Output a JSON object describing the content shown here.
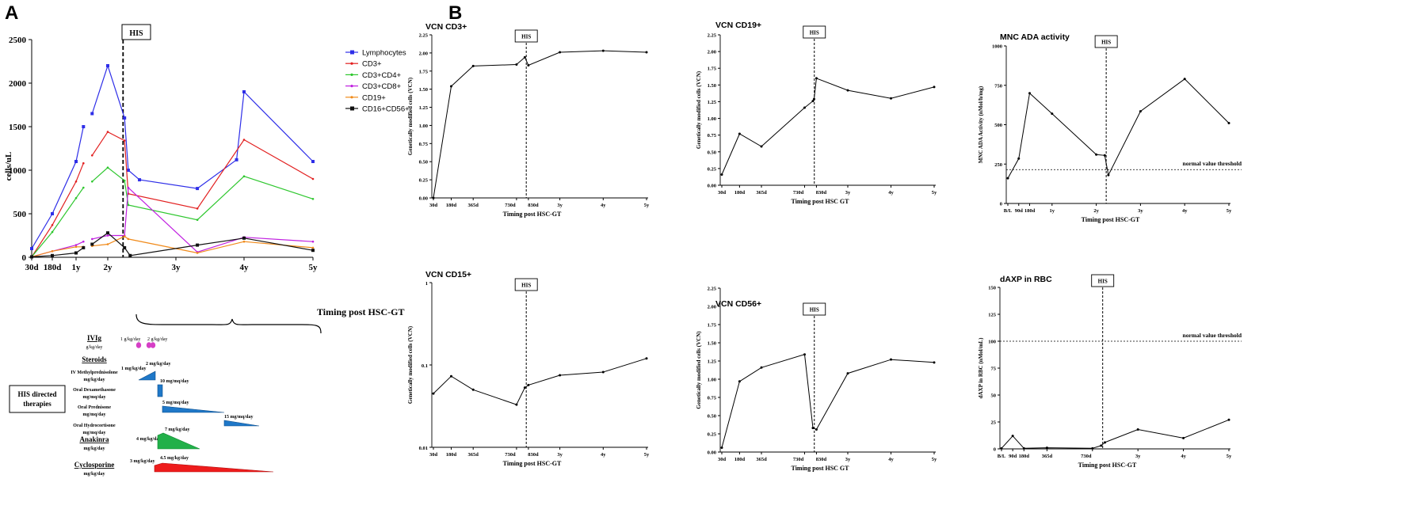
{
  "panel_labels": {
    "a": "A",
    "b": "B"
  },
  "his_label": "HIS",
  "chart_data": [
    {
      "id": "lymph",
      "type": "line",
      "title": "",
      "ylabel": "cells/uL",
      "xlabel": "Timing post HSC-GT",
      "ylim": [
        0,
        2500
      ],
      "yticks": [
        0,
        500,
        1000,
        1500,
        2000,
        2500
      ],
      "xticks": [
        {
          "x": 30,
          "label": "30d"
        },
        {
          "x": 180,
          "label": "180d"
        },
        {
          "x": 365,
          "label": "1y"
        },
        {
          "x": 730,
          "label": "2y"
        },
        {
          "x": 1095,
          "label": "3y"
        },
        {
          "x": 1460,
          "label": "4y"
        },
        {
          "x": 1825,
          "label": "5y"
        }
      ],
      "his_x": 812,
      "legend": [
        "Lymphocytes",
        "CD3+",
        "CD3+CD4+",
        "CD3+CD8+",
        "CD19+",
        "CD16+CD56+"
      ],
      "series": [
        {
          "name": "Lymphocytes",
          "color": "#2e2ee8",
          "marker": "square",
          "segments": [
            [
              [
                30,
                100
              ],
              [
                180,
                500
              ],
              [
                365,
                1100
              ],
              [
                450,
                1500
              ]
            ],
            [
              [
                550,
                1650
              ],
              [
                730,
                2200
              ],
              [
                820,
                1600
              ],
              [
                840,
                1000
              ],
              [
                900,
                890
              ],
              [
                1210,
                790
              ],
              [
                1420,
                1120
              ],
              [
                1460,
                1900
              ],
              [
                1825,
                1100
              ]
            ]
          ]
        },
        {
          "name": "CD3+",
          "color": "#e21f1f",
          "marker": "none",
          "segments": [
            [
              [
                30,
                5
              ],
              [
                180,
                370
              ],
              [
                365,
                870
              ],
              [
                450,
                1080
              ]
            ],
            [
              [
                550,
                1170
              ],
              [
                730,
                1440
              ],
              [
                820,
                1340
              ],
              [
                840,
                730
              ],
              [
                1210,
                560
              ],
              [
                1460,
                1350
              ],
              [
                1825,
                900
              ]
            ]
          ]
        },
        {
          "name": "CD3+CD4+",
          "color": "#2ec72e",
          "marker": "none",
          "segments": [
            [
              [
                30,
                5
              ],
              [
                180,
                290
              ],
              [
                365,
                680
              ],
              [
                450,
                800
              ]
            ],
            [
              [
                550,
                870
              ],
              [
                730,
                1030
              ],
              [
                820,
                880
              ],
              [
                840,
                600
              ],
              [
                1210,
                430
              ],
              [
                1460,
                930
              ],
              [
                1825,
                670
              ]
            ]
          ]
        },
        {
          "name": "CD3+CD8+",
          "color": "#c020e0",
          "marker": "none",
          "segments": [
            [
              [
                30,
                5
              ],
              [
                180,
                70
              ],
              [
                365,
                140
              ],
              [
                450,
                180
              ]
            ],
            [
              [
                550,
                210
              ],
              [
                730,
                250
              ],
              [
                820,
                250
              ],
              [
                840,
                800
              ],
              [
                1210,
                60
              ],
              [
                1460,
                230
              ],
              [
                1825,
                180
              ]
            ]
          ]
        },
        {
          "name": "CD19+",
          "color": "#f08a1a",
          "marker": "none",
          "segments": [
            [
              [
                30,
                5
              ],
              [
                180,
                70
              ],
              [
                365,
                120
              ],
              [
                450,
                120
              ]
            ],
            [
              [
                550,
                130
              ],
              [
                730,
                150
              ],
              [
                820,
                240
              ],
              [
                840,
                210
              ],
              [
                1210,
                50
              ],
              [
                1460,
                180
              ],
              [
                1825,
                110
              ]
            ]
          ]
        },
        {
          "name": "CD16+CD56+",
          "color": "#111111",
          "marker": "square",
          "segments": [
            [
              [
                30,
                5
              ],
              [
                180,
                20
              ],
              [
                365,
                50
              ],
              [
                450,
                110
              ]
            ],
            [
              [
                550,
                150
              ],
              [
                730,
                280
              ],
              [
                820,
                110
              ],
              [
                850,
                20
              ],
              [
                1210,
                140
              ],
              [
                1460,
                220
              ],
              [
                1825,
                80
              ]
            ]
          ]
        }
      ]
    },
    {
      "id": "cd3",
      "type": "line",
      "title": "VCN CD3+",
      "ylabel": "Genetically modified cells (VCN)",
      "xlabel": "Timing post HSC-GT",
      "ylim": [
        0,
        2.25
      ],
      "yticks": [
        "0.00",
        "0.25",
        "0.50",
        "0.75",
        "1.00",
        "1.25",
        "1.50",
        "1.75",
        "2.00",
        "2.25"
      ],
      "xticks": [
        {
          "x": 30,
          "label": "30d"
        },
        {
          "x": 180,
          "label": "180d"
        },
        {
          "x": 365,
          "label": "365d"
        },
        {
          "x": 730,
          "label": "730d"
        },
        {
          "x": 830,
          "label": "830d"
        },
        {
          "x": 1095,
          "label": "3y"
        },
        {
          "x": 1460,
          "label": "4y"
        },
        {
          "x": 1825,
          "label": "5y"
        }
      ],
      "xmax": 1825,
      "his_x": 812,
      "points": [
        [
          30,
          0.0
        ],
        [
          180,
          1.54
        ],
        [
          365,
          1.82
        ],
        [
          730,
          1.84
        ],
        [
          800,
          1.94
        ],
        [
          830,
          1.83
        ],
        [
          1095,
          2.01
        ],
        [
          1460,
          2.03
        ],
        [
          1825,
          2.01
        ]
      ]
    },
    {
      "id": "cd19",
      "type": "line",
      "title": "VCN CD19+",
      "ylabel": "Genetically modified cells (VCN)",
      "xlabel": "Timing post HSC GT",
      "ylim": [
        0,
        2.25
      ],
      "yticks": [
        "0.00",
        "0.25",
        "0.50",
        "0.75",
        "1.00",
        "1.25",
        "1.50",
        "1.75",
        "2.00",
        "2.25"
      ],
      "xticks": [
        {
          "x": 30,
          "label": "30d"
        },
        {
          "x": 180,
          "label": "180d"
        },
        {
          "x": 365,
          "label": "365d"
        },
        {
          "x": 730,
          "label": "730d"
        },
        {
          "x": 830,
          "label": "830d"
        },
        {
          "x": 1095,
          "label": "3y"
        },
        {
          "x": 1460,
          "label": "4y"
        },
        {
          "x": 1825,
          "label": "5y"
        }
      ],
      "xmax": 1825,
      "his_x": 812,
      "points": [
        [
          30,
          0.16
        ],
        [
          180,
          0.77
        ],
        [
          365,
          0.58
        ],
        [
          730,
          1.16
        ],
        [
          800,
          1.26
        ],
        [
          810,
          1.29
        ],
        [
          830,
          1.6
        ],
        [
          1095,
          1.42
        ],
        [
          1460,
          1.3
        ],
        [
          1825,
          1.47
        ]
      ]
    },
    {
      "id": "ada",
      "type": "line",
      "title": "MNC ADA activity",
      "ylabel": "MNC ADA Activity (nMol/h/mg)",
      "xlabel": "Timing post HSC-GT",
      "ylim": [
        0,
        1000
      ],
      "yticks": [
        "0",
        "250",
        "500",
        "750",
        "1000"
      ],
      "xticks": [
        {
          "x": 0,
          "label": "B/L"
        },
        {
          "x": 90,
          "label": "90d"
        },
        {
          "x": 180,
          "label": "180d"
        },
        {
          "x": 365,
          "label": "1y"
        },
        {
          "x": 730,
          "label": "2y"
        },
        {
          "x": 1095,
          "label": "3y"
        },
        {
          "x": 1460,
          "label": "4y"
        },
        {
          "x": 1825,
          "label": "5y"
        }
      ],
      "xmax": 1825,
      "his_x": 812,
      "threshold": {
        "value": 215,
        "label": "normal value threshold"
      },
      "points": [
        [
          0,
          160
        ],
        [
          90,
          285
        ],
        [
          180,
          700
        ],
        [
          365,
          570
        ],
        [
          730,
          310
        ],
        [
          800,
          305
        ],
        [
          830,
          180
        ],
        [
          1095,
          585
        ],
        [
          1460,
          790
        ],
        [
          1825,
          510
        ]
      ]
    },
    {
      "id": "cd15",
      "type": "line",
      "title": "VCN CD15+",
      "ylabel": "Genetically modified cells (VCN)",
      "xlabel": "Timing post HSC-GT",
      "yscale": "log",
      "ylim": [
        0.01,
        1
      ],
      "yticks": [
        {
          "v": 0.01,
          "label": "0.01"
        },
        {
          "v": 0.1,
          "label": "0.1"
        },
        {
          "v": 1,
          "label": "1"
        }
      ],
      "xticks": [
        {
          "x": 30,
          "label": "30d"
        },
        {
          "x": 180,
          "label": "180d"
        },
        {
          "x": 365,
          "label": "365d"
        },
        {
          "x": 730,
          "label": "730d"
        },
        {
          "x": 830,
          "label": "830d"
        },
        {
          "x": 1095,
          "label": "3y"
        },
        {
          "x": 1460,
          "label": "4y"
        },
        {
          "x": 1825,
          "label": "5y"
        }
      ],
      "xmax": 1825,
      "his_x": 812,
      "points": [
        [
          30,
          0.045
        ],
        [
          180,
          0.073
        ],
        [
          365,
          0.05
        ],
        [
          730,
          0.033
        ],
        [
          800,
          0.053
        ],
        [
          830,
          0.057
        ],
        [
          1095,
          0.075
        ],
        [
          1460,
          0.082
        ],
        [
          1825,
          0.12
        ]
      ]
    },
    {
      "id": "cd56",
      "type": "line",
      "title": "VCN CD56+",
      "ylabel": "Genetically modified cells (VCN)",
      "xlabel": "Timing post HSC GT",
      "ylim": [
        0,
        2.25
      ],
      "yticks": [
        "0.00",
        "0.25",
        "0.50",
        "0.75",
        "1.00",
        "1.25",
        "1.50",
        "1.75",
        "2.00",
        "2.25"
      ],
      "xticks": [
        {
          "x": 30,
          "label": "30d"
        },
        {
          "x": 180,
          "label": "180d"
        },
        {
          "x": 365,
          "label": "365d"
        },
        {
          "x": 730,
          "label": "730d"
        },
        {
          "x": 830,
          "label": "830d"
        },
        {
          "x": 1095,
          "label": "3y"
        },
        {
          "x": 1460,
          "label": "4y"
        },
        {
          "x": 1825,
          "label": "5y"
        }
      ],
      "xmax": 1825,
      "his_x": 812,
      "points": [
        [
          30,
          0.06
        ],
        [
          180,
          0.97
        ],
        [
          365,
          1.16
        ],
        [
          730,
          1.34
        ],
        [
          800,
          0.33
        ],
        [
          830,
          0.31
        ],
        [
          1095,
          1.08
        ],
        [
          1460,
          1.27
        ],
        [
          1825,
          1.23
        ]
      ]
    },
    {
      "id": "daxp",
      "type": "line",
      "title": "dAXP in RBC",
      "ylabel": "dAXP in RBC (nMol/mL)",
      "xlabel": "Timing post HSC-GT",
      "ylim": [
        0,
        150
      ],
      "yticks": [
        "0",
        "25",
        "50",
        "75",
        "100",
        "125",
        "150"
      ],
      "xticks": [
        {
          "x": 0,
          "label": "B/L"
        },
        {
          "x": 90,
          "label": "90d"
        },
        {
          "x": 180,
          "label": "180d"
        },
        {
          "x": 365,
          "label": "365d"
        },
        {
          "x": 730,
          "label": "730d"
        },
        {
          "x": 1095,
          "label": "3y"
        },
        {
          "x": 1460,
          "label": "4y"
        },
        {
          "x": 1825,
          "label": "5y"
        }
      ],
      "xmax": 1825,
      "his_x": 812,
      "threshold": {
        "value": 100,
        "label": "normal value threshold"
      },
      "points": [
        [
          0,
          0.5
        ],
        [
          90,
          12
        ],
        [
          180,
          0.5
        ],
        [
          365,
          1
        ],
        [
          730,
          0.5
        ],
        [
          800,
          3
        ],
        [
          830,
          6
        ],
        [
          1095,
          18
        ],
        [
          1460,
          10
        ],
        [
          1825,
          27
        ]
      ]
    }
  ],
  "therapies": {
    "title_line1": "HIS directed",
    "title_line2": "therapies",
    "ivig_title": "IVIg",
    "ivig_unit": "g/kg/day",
    "ivig_dose1": "1 g/kg/day",
    "ivig_dose2": "2 g/kg/day",
    "steroids_title": "Steroids",
    "methylpred_label": "IV Methylprednisolone",
    "methylpred_unit": "mg/kg/day",
    "methylpred_dose_a": "1 mg/kg/day",
    "methylpred_dose_b": "2 mg/kg/day",
    "dexa_label": "Oral Dexamethasone",
    "dexa_unit": "mg/mq/day",
    "dexa_dose": "10 mg/mq/day",
    "pred_label": "Oral Prednisone",
    "pred_unit": "mg/mq/day",
    "pred_dose": "5 mg/mq/day",
    "hydro_label": "Oral Hydrocortisone",
    "hydro_unit": "mg/mq/day",
    "hydro_dose": "15 mg/mq/day",
    "anakinra_title": "Anakinra",
    "anakinra_unit": "mg/kg/day",
    "anakinra_dose1": "4 mg/kg/day",
    "anakinra_dose2": "7 mg/kg/day",
    "cyclo_title": "Cyclosporine",
    "cyclo_unit": "mg/kg/day",
    "cyclo_dose1": "3 mg/kg/day",
    "cyclo_dose2": "4.5 mg/kg/day",
    "colors": {
      "ivig": "#d63fc6",
      "steroid": "#1f78c8",
      "anakinra": "#22b04a",
      "cyclo": "#ee1c1c"
    }
  }
}
